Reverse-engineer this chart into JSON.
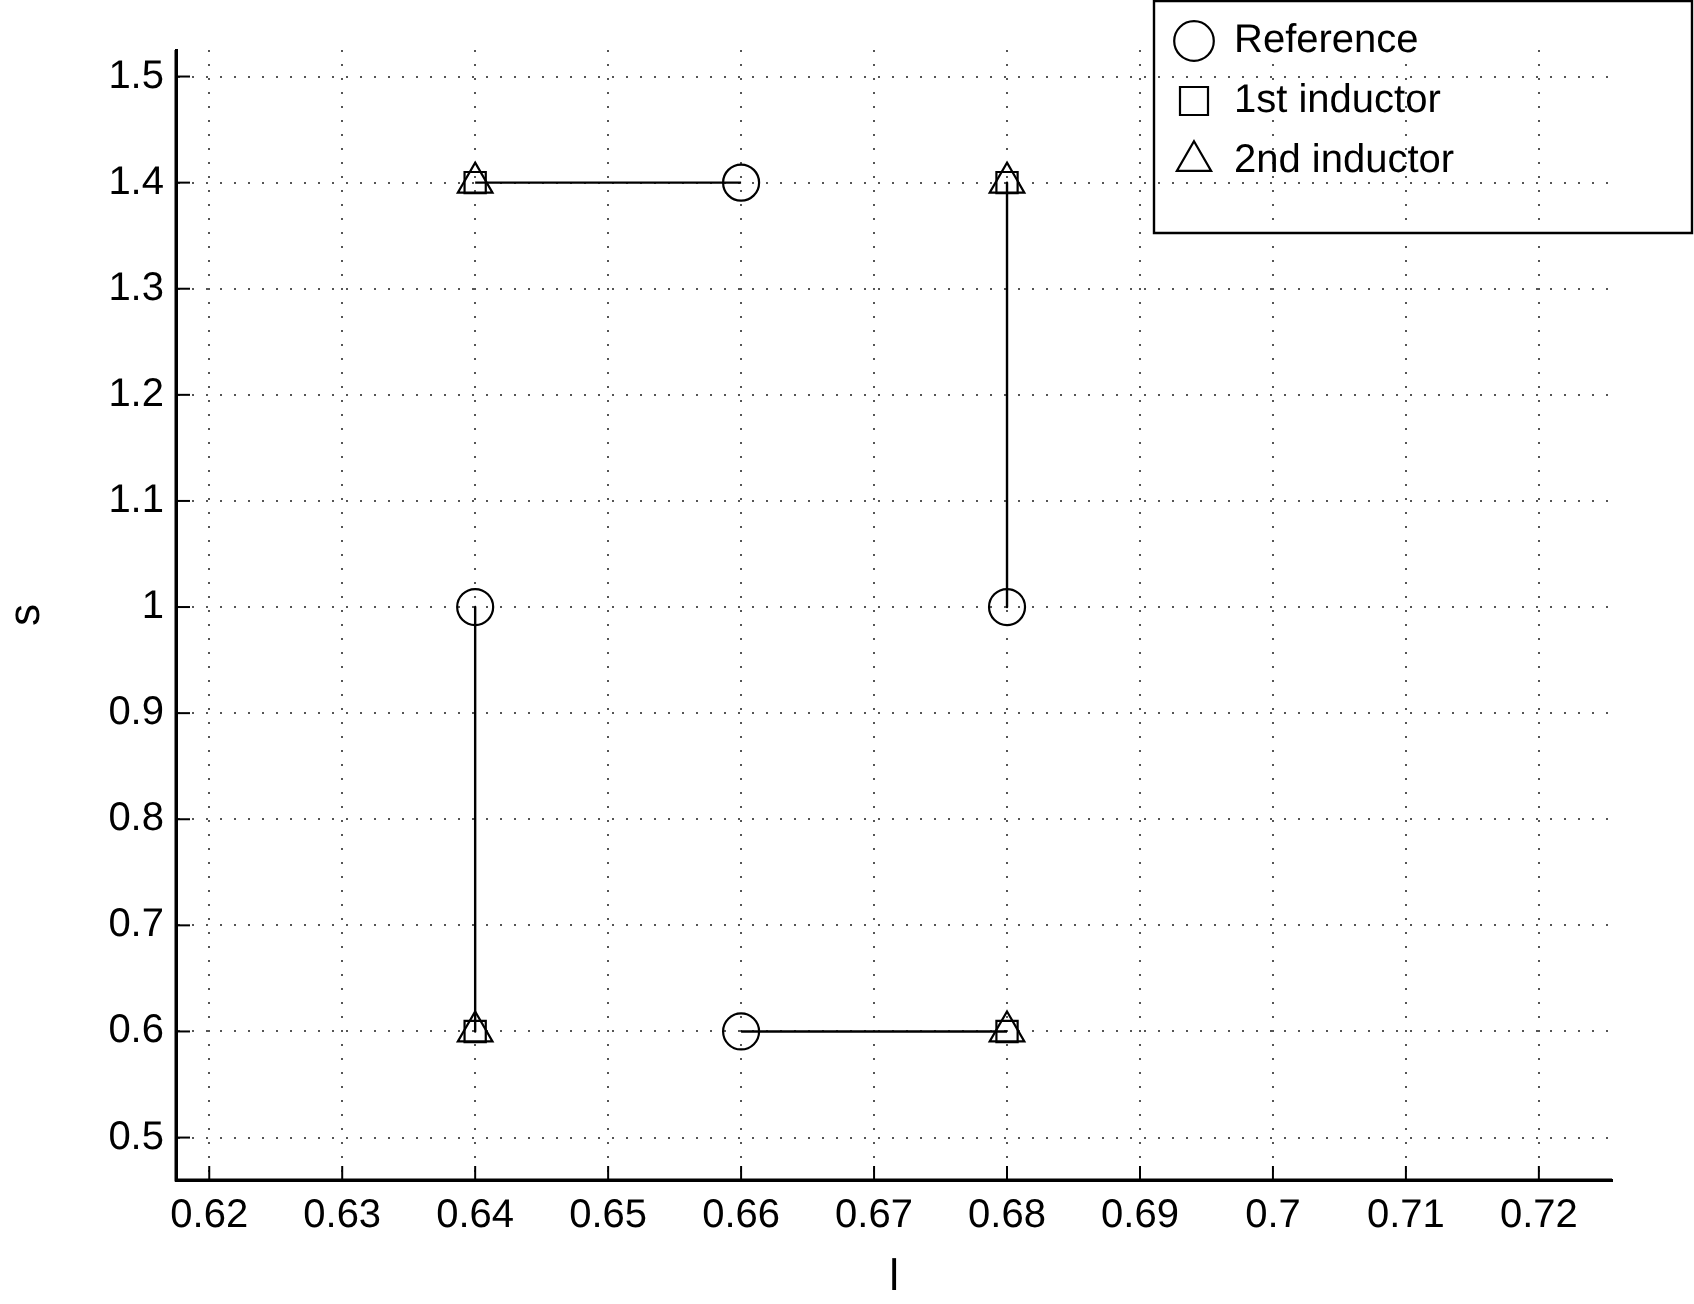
{
  "chart_data": {
    "type": "scatter",
    "xlabel": "l",
    "ylabel": "s",
    "xlim": [
      0.6175,
      0.7255
    ],
    "ylim": [
      0.46,
      1.525
    ],
    "xticks": [
      0.62,
      0.63,
      0.64,
      0.65,
      0.66,
      0.67,
      0.68,
      0.69,
      0.7,
      0.71,
      0.72
    ],
    "yticks": [
      0.5,
      0.6,
      0.7,
      0.8,
      0.9,
      1,
      1.1,
      1.2,
      1.3,
      1.4,
      1.5
    ],
    "grid": true,
    "legend": "top right",
    "series": [
      {
        "type": "line",
        "color": "#000000",
        "marker": "none",
        "x": [
          0.64,
          0.66
        ],
        "values": [
          1.4,
          1.4
        ]
      },
      {
        "type": "line",
        "color": "#000000",
        "marker": "none",
        "x": [
          0.68,
          0.68
        ],
        "values": [
          1.4,
          1.0
        ]
      },
      {
        "type": "line",
        "color": "#000000",
        "marker": "none",
        "x": [
          0.64,
          0.64
        ],
        "values": [
          1.0,
          0.6
        ]
      },
      {
        "type": "line",
        "color": "#000000",
        "marker": "none",
        "x": [
          0.66,
          0.68
        ],
        "values": [
          0.6,
          0.6
        ]
      },
      {
        "name": "Reference",
        "color": "#000000",
        "marker": "circle",
        "x": [
          0.66,
          0.64,
          0.68,
          0.66
        ],
        "values": [
          1.4,
          1.0,
          1.0,
          0.6
        ]
      },
      {
        "name": "1st inductor",
        "color": "#000000",
        "marker": "square",
        "x": [
          0.64,
          0.68,
          0.64,
          0.68
        ],
        "values": [
          1.4,
          1.4,
          0.6,
          0.6
        ]
      },
      {
        "name": "2nd inductor",
        "color": "#000000",
        "marker": "triangle",
        "x": [
          0.64,
          0.68,
          0.64,
          0.68
        ],
        "values": [
          1.4,
          1.4,
          0.6,
          0.6
        ]
      }
    ]
  }
}
